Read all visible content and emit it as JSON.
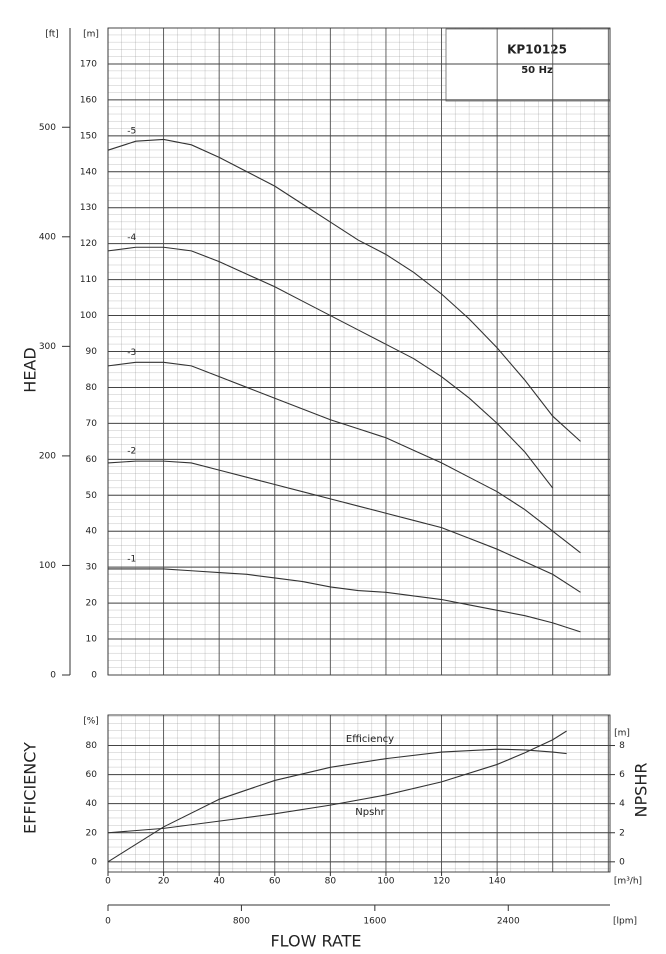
{
  "chart_data": [
    {
      "type": "line",
      "title": "KP10125",
      "subtitle": "50 Hz",
      "ylabel": "HEAD",
      "yunit": "[m]",
      "y2unit": "[ft]",
      "xlim": [
        0,
        180.6
      ],
      "ylim": [
        0,
        180
      ],
      "yticks": [
        0,
        10,
        20,
        30,
        40,
        50,
        60,
        70,
        80,
        90,
        100,
        110,
        120,
        130,
        140,
        150,
        160,
        170
      ],
      "y2lim": [
        0,
        590.6
      ],
      "y2ticks": [
        0,
        100,
        200,
        300,
        400,
        500
      ],
      "grid": true,
      "x": [
        0,
        10,
        20,
        30,
        40,
        50,
        60,
        70,
        80,
        90,
        100,
        110,
        120,
        130,
        140,
        150,
        160,
        170
      ],
      "series": [
        {
          "name": "-5",
          "color": "#333333",
          "values": [
            146,
            148.5,
            149,
            147.5,
            144,
            140,
            136,
            131,
            126,
            121,
            117,
            112,
            106,
            99,
            91,
            82,
            72,
            65
          ]
        },
        {
          "name": "-4",
          "color": "#333333",
          "values": [
            118,
            119,
            119,
            118,
            115,
            111.5,
            108,
            104,
            100,
            96,
            92,
            88,
            83,
            77,
            70,
            62,
            52,
            null
          ]
        },
        {
          "name": "-3",
          "color": "#333333",
          "values": [
            86,
            87,
            87,
            86,
            83,
            80,
            77,
            74,
            71,
            68.5,
            66,
            62.5,
            59,
            55,
            51,
            46,
            40,
            34
          ]
        },
        {
          "name": "-2",
          "color": "#333333",
          "values": [
            59,
            59.5,
            59.5,
            59,
            57,
            55,
            53,
            51,
            49,
            47,
            45,
            43,
            41,
            38,
            35,
            31.5,
            28,
            23
          ]
        },
        {
          "name": "-1",
          "color": "#333333",
          "values": [
            29.5,
            29.5,
            29.5,
            29,
            28.5,
            28,
            27,
            26,
            24.5,
            23.5,
            23,
            22,
            21,
            19.5,
            18,
            16.5,
            14.5,
            12
          ]
        }
      ]
    },
    {
      "type": "line",
      "ylabel": "EFFICIENCY",
      "yunit": "[%]",
      "y2label": "NPSHR",
      "y2unit": "[m]",
      "xlabel": "FLOW RATE",
      "xunit": "[m³/h]",
      "x2unit": "[lpm]",
      "xlim": [
        0,
        180.6
      ],
      "xticks": [
        0,
        20,
        40,
        60,
        80,
        100,
        120,
        140
      ],
      "x2lim": [
        0,
        3010
      ],
      "x2ticks": [
        0,
        800,
        1600,
        2400
      ],
      "ylim": [
        -7,
        101
      ],
      "yticks": [
        0,
        20,
        40,
        60,
        80
      ],
      "y2lim": [
        -0.7,
        10.1
      ],
      "y2ticks": [
        0,
        2,
        4,
        6,
        8
      ],
      "grid": true,
      "x": [
        0,
        20,
        40,
        60,
        80,
        100,
        120,
        140,
        150,
        160,
        165
      ],
      "series": [
        {
          "name": "Efficiency",
          "color": "#333333",
          "values": [
            0,
            24,
            43,
            56,
            65,
            71,
            75.5,
            77.5,
            77,
            75.5,
            74.5
          ]
        },
        {
          "name": "Npshr",
          "color": "#333333",
          "axis": "y2",
          "values": [
            2,
            2.3,
            2.8,
            3.3,
            3.9,
            4.6,
            5.5,
            6.7,
            7.5,
            8.4,
            9.0
          ]
        }
      ]
    }
  ]
}
